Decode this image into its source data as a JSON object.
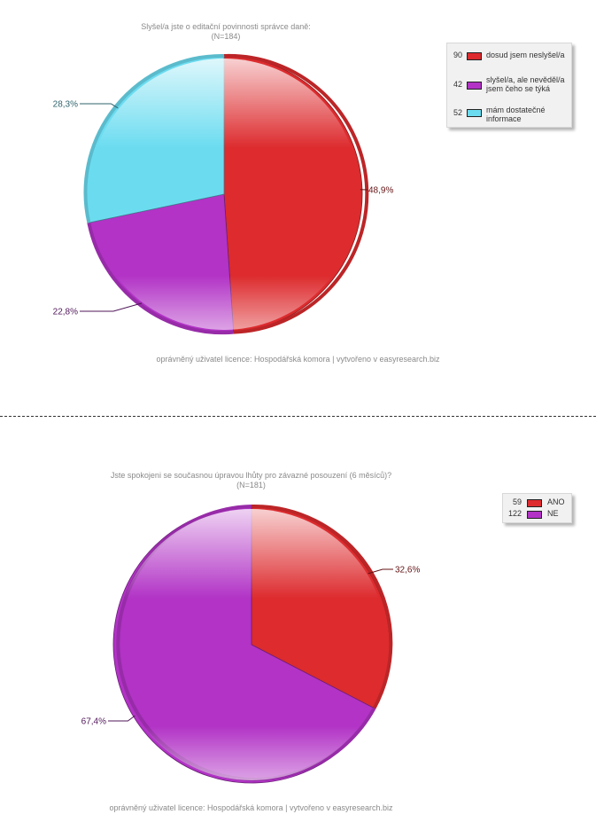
{
  "colors": {
    "red": "#dd2b2e",
    "purple": "#b233c6",
    "cyan": "#6bdcf0"
  },
  "chart_data": [
    {
      "type": "pie",
      "title": "Slyšel/a jste o editační povinnosti správce daně:",
      "subtitle": "(N=184)",
      "slices": [
        {
          "label": "dosud jsem neslyšel/a",
          "count": 90,
          "percent": 48.9,
          "percent_label": "48,9%",
          "color": "#dd2b2e"
        },
        {
          "label": "slyšel/a, ale nevěděl/a jsem čeho se týká",
          "count": 42,
          "percent": 22.8,
          "percent_label": "22,8%",
          "color": "#b233c6"
        },
        {
          "label": "mám dostatečné informace",
          "count": 52,
          "percent": 28.3,
          "percent_label": "28,3%",
          "color": "#6bdcf0"
        }
      ],
      "footer": "oprávněný uživatel licence: Hospodářská komora | vytvořeno v easyresearch.biz"
    },
    {
      "type": "pie",
      "title": "Jste spokojeni se současnou úpravou lhůty pro závazné posouzení (6 měsíců)?",
      "subtitle": "(N=181)",
      "slices": [
        {
          "label": "ANO",
          "count": 59,
          "percent": 32.6,
          "percent_label": "32,6%",
          "color": "#dd2b2e"
        },
        {
          "label": "NE",
          "count": 122,
          "percent": 67.4,
          "percent_label": "67,4%",
          "color": "#b233c6"
        }
      ],
      "footer": "oprávněný uživatel licence: Hospodářská komora | vytvořeno v easyresearch.biz"
    }
  ]
}
